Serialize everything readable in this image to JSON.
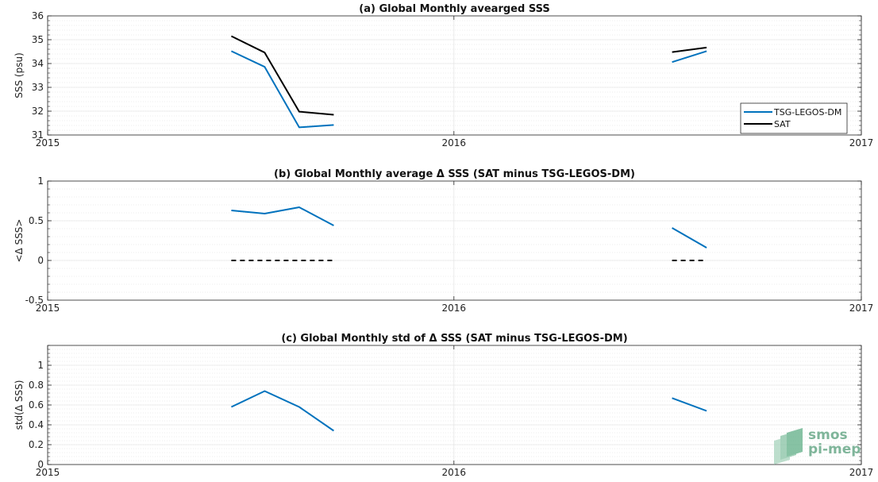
{
  "colors": {
    "tsg": "#0072BD",
    "sat": "#000000",
    "grid": "#d9d9d9",
    "axis": "#262626",
    "watermark": "#7fb59a"
  },
  "watermark": {
    "line1": "smos",
    "line2": "pi-mep",
    "icon": "smos-logo-icon"
  },
  "chart_data": [
    {
      "id": "a",
      "type": "line",
      "title": "(a) Global Monthly avearged SSS",
      "xlabel": "",
      "ylabel": "SSS (psu)",
      "xlim": [
        "2015-01-01",
        "2017-01-01"
      ],
      "xticks": [
        "2015",
        "2016",
        "2017"
      ],
      "ylim": [
        31,
        36
      ],
      "yticks": [
        "31",
        "32",
        "33",
        "34",
        "35",
        "36"
      ],
      "grid": true,
      "legend": "bottom-right",
      "series": [
        {
          "name": "TSG-LEGOS-DM",
          "color": "#0072BD",
          "style": "solid",
          "segments": [
            [
              [
                "2015-06-15",
                34.52
              ],
              [
                "2015-07-15",
                33.86
              ],
              [
                "2015-08-15",
                31.32
              ],
              [
                "2015-09-15",
                31.42
              ]
            ],
            [
              [
                "2016-07-15",
                34.06
              ],
              [
                "2016-08-15",
                34.52
              ]
            ]
          ]
        },
        {
          "name": "SAT",
          "color": "#000000",
          "style": "solid",
          "segments": [
            [
              [
                "2015-06-15",
                35.15
              ],
              [
                "2015-07-15",
                34.46
              ],
              [
                "2015-08-15",
                31.98
              ],
              [
                "2015-09-15",
                31.85
              ]
            ],
            [
              [
                "2016-07-15",
                34.48
              ],
              [
                "2016-08-15",
                34.67
              ]
            ]
          ]
        }
      ]
    },
    {
      "id": "b",
      "type": "line",
      "title": "(b) Global Monthly average Δ SSS (SAT minus TSG-LEGOS-DM)",
      "xlabel": "",
      "ylabel": "<Δ SSS>",
      "xlim": [
        "2015-01-01",
        "2017-01-01"
      ],
      "xticks": [
        "2015",
        "2016",
        "2017"
      ],
      "ylim": [
        -0.5,
        1
      ],
      "yticks": [
        "-0.5",
        "0",
        "0.5",
        "1"
      ],
      "grid": true,
      "series": [
        {
          "color": "#0072BD",
          "style": "solid",
          "segments": [
            [
              [
                "2015-06-15",
                0.63
              ],
              [
                "2015-07-15",
                0.59
              ],
              [
                "2015-08-15",
                0.67
              ],
              [
                "2015-09-15",
                0.44
              ]
            ],
            [
              [
                "2016-07-15",
                0.41
              ],
              [
                "2016-08-15",
                0.16
              ]
            ]
          ]
        },
        {
          "color": "#000000",
          "style": "dashed",
          "segments": [
            [
              [
                "2015-06-15",
                0
              ],
              [
                "2015-09-15",
                0
              ]
            ],
            [
              [
                "2016-07-15",
                0
              ],
              [
                "2016-08-15",
                0
              ]
            ]
          ]
        }
      ]
    },
    {
      "id": "c",
      "type": "line",
      "title": "(c) Global Monthly std of Δ SSS (SAT minus TSG-LEGOS-DM)",
      "xlabel": "",
      "ylabel": "std(Δ SSS)",
      "xlim": [
        "2015-01-01",
        "2017-01-01"
      ],
      "xticks": [
        "2015",
        "2016",
        "2017"
      ],
      "ylim": [
        0,
        1.2
      ],
      "yticks": [
        "0",
        "0.2",
        "0.4",
        "0.6",
        "0.8",
        "1"
      ],
      "grid": true,
      "series": [
        {
          "color": "#0072BD",
          "style": "solid",
          "segments": [
            [
              [
                "2015-06-15",
                0.58
              ],
              [
                "2015-07-15",
                0.74
              ],
              [
                "2015-08-15",
                0.58
              ],
              [
                "2015-09-15",
                0.34
              ]
            ],
            [
              [
                "2016-07-15",
                0.67
              ],
              [
                "2016-08-15",
                0.54
              ]
            ]
          ]
        }
      ]
    }
  ]
}
